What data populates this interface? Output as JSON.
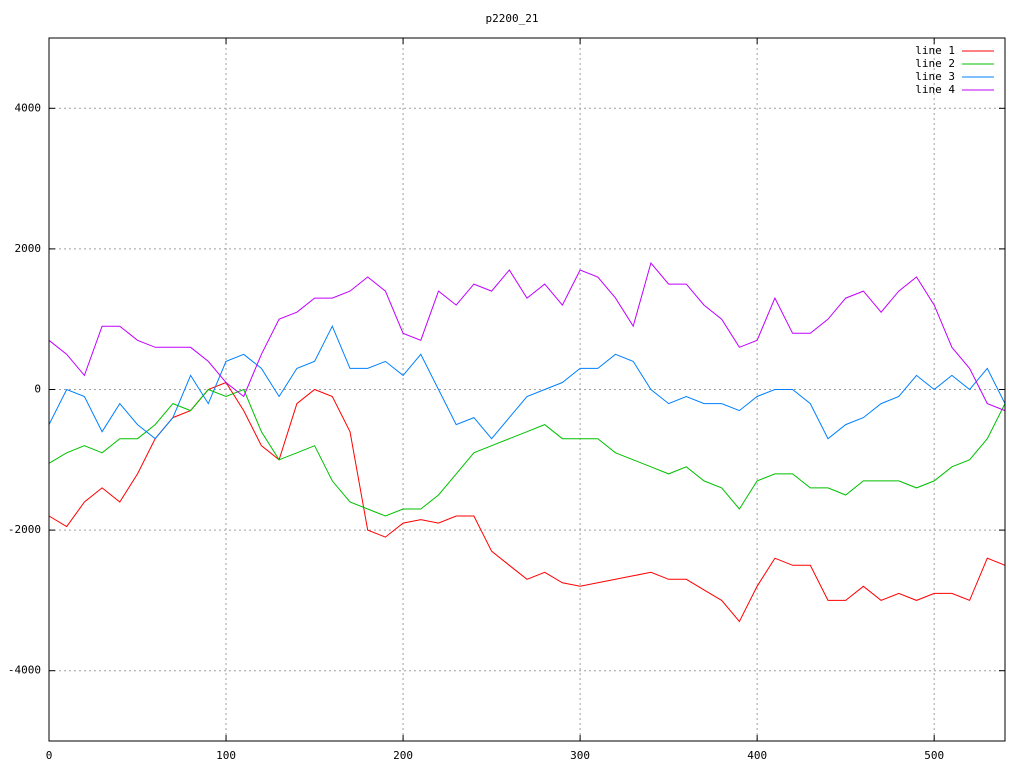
{
  "chart_data": {
    "type": "line",
    "title": "p2200_21",
    "x": [
      0,
      10,
      20,
      30,
      40,
      50,
      60,
      70,
      80,
      90,
      100,
      110,
      120,
      130,
      140,
      150,
      160,
      170,
      180,
      190,
      200,
      210,
      220,
      230,
      240,
      250,
      260,
      270,
      280,
      290,
      300,
      310,
      320,
      330,
      340,
      350,
      360,
      370,
      380,
      390,
      400,
      410,
      420,
      430,
      440,
      450,
      460,
      470,
      480,
      490,
      500,
      510,
      520,
      530,
      540
    ],
    "series": [
      {
        "name": "line 1",
        "color": "#ff0000",
        "values": [
          -1800,
          -1950,
          -1600,
          -1400,
          -1600,
          -1200,
          -700,
          -400,
          -300,
          0,
          100,
          -300,
          -800,
          -1000,
          -200,
          0,
          -100,
          -600,
          -2000,
          -2100,
          -1900,
          -1850,
          -1900,
          -1800,
          -1800,
          -2300,
          -2500,
          -2700,
          -2600,
          -2750,
          -2800,
          -2750,
          -2700,
          -2650,
          -2600,
          -2700,
          -2700,
          -2850,
          -3000,
          -3300,
          -2800,
          -2400,
          -2500,
          -2500,
          -3000,
          -3000,
          -2800,
          -3000,
          -2900,
          -3000,
          -2900,
          -2900,
          -3000,
          -2400,
          -2500
        ]
      },
      {
        "name": "line 2",
        "color": "#00c000",
        "values": [
          -1050,
          -900,
          -800,
          -900,
          -700,
          -700,
          -500,
          -200,
          -300,
          0,
          -100,
          0,
          -600,
          -1000,
          -900,
          -800,
          -1300,
          -1600,
          -1700,
          -1800,
          -1700,
          -1700,
          -1500,
          -1200,
          -900,
          -800,
          -700,
          -600,
          -500,
          -700,
          -700,
          -700,
          -900,
          -1000,
          -1100,
          -1200,
          -1100,
          -1300,
          -1400,
          -1700,
          -1300,
          -1200,
          -1200,
          -1400,
          -1400,
          -1500,
          -1300,
          -1300,
          -1300,
          -1400,
          -1300,
          -1100,
          -1000,
          -700,
          -200
        ]
      },
      {
        "name": "line 3",
        "color": "#0080ff",
        "values": [
          -500,
          0,
          -100,
          -600,
          -200,
          -500,
          -700,
          -400,
          200,
          -200,
          400,
          500,
          300,
          -100,
          300,
          400,
          900,
          300,
          300,
          400,
          200,
          500,
          0,
          -500,
          -400,
          -700,
          -400,
          -100,
          0,
          100,
          300,
          300,
          500,
          400,
          0,
          -200,
          -100,
          -200,
          -200,
          -300,
          -100,
          0,
          0,
          -200,
          -700,
          -500,
          -400,
          -200,
          -100,
          200,
          0,
          200,
          0,
          300,
          -200
        ]
      },
      {
        "name": "line 4",
        "color": "#c000ff",
        "values": [
          700,
          500,
          200,
          900,
          900,
          700,
          600,
          600,
          600,
          400,
          100,
          -100,
          500,
          1000,
          1100,
          1300,
          1300,
          1400,
          1600,
          1400,
          800,
          700,
          1400,
          1200,
          1500,
          1400,
          1700,
          1300,
          1500,
          1200,
          1700,
          1600,
          1300,
          900,
          1800,
          1500,
          1500,
          1200,
          1000,
          600,
          700,
          1300,
          800,
          800,
          1000,
          1300,
          1400,
          1100,
          1400,
          1600,
          1200,
          600,
          300,
          -200,
          -300
        ]
      }
    ],
    "xlim": [
      0,
      540
    ],
    "xticks": [
      0,
      100,
      200,
      300,
      400,
      500
    ],
    "ylim": [
      -5000,
      5000
    ],
    "yticks": [
      -4000,
      -2000,
      0,
      2000,
      4000
    ],
    "grid": true,
    "legend": "top-right"
  }
}
